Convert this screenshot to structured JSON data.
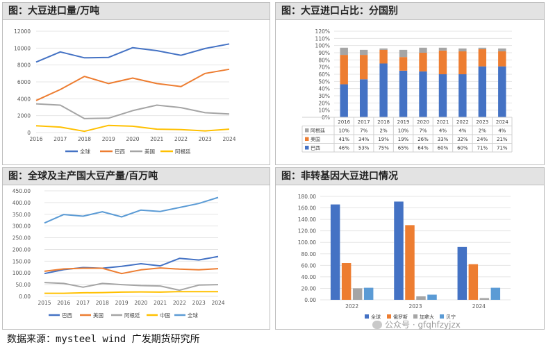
{
  "panels": {
    "p1": {
      "title": "图：大豆进口量/万吨"
    },
    "p2": {
      "title": "图：大豆进口占比：分国别"
    },
    "p3": {
      "title": "图：全球及主产国大豆产量/百万吨"
    },
    "p4": {
      "title": "图：非转基因大豆进口情况"
    }
  },
  "footer": {
    "source": "数据来源：mysteel wind 广发期货研究所",
    "watermark": "公众号 · gfqhfzyjzx"
  },
  "chart_data": [
    {
      "id": "imports",
      "type": "line",
      "title": "大豆进口量/万吨",
      "x": [
        "2016",
        "2017",
        "2018",
        "2019",
        "2020",
        "2021",
        "2022",
        "2023",
        "2024"
      ],
      "ylim": [
        0,
        12000
      ],
      "yticks": [
        0,
        2000,
        4000,
        6000,
        8000,
        10000,
        12000
      ],
      "series": [
        {
          "name": "全球",
          "color": "#4472c4",
          "values": [
            8350,
            9550,
            8850,
            8900,
            10050,
            9700,
            9150,
            9950,
            10500
          ]
        },
        {
          "name": "巴西",
          "color": "#ed7d31",
          "values": [
            3800,
            5100,
            6650,
            5800,
            6450,
            5800,
            5450,
            7000,
            7500
          ]
        },
        {
          "name": "美国",
          "color": "#a5a5a5",
          "values": [
            3400,
            3250,
            1650,
            1700,
            2600,
            3250,
            2950,
            2350,
            2200
          ]
        },
        {
          "name": "阿根廷",
          "color": "#ffc000",
          "values": [
            800,
            650,
            150,
            850,
            750,
            400,
            350,
            200,
            400
          ]
        }
      ]
    },
    {
      "id": "share",
      "type": "bar",
      "stacked": true,
      "title": "大豆进口占比：分国别",
      "categories": [
        "2016",
        "2017",
        "2018",
        "2019",
        "2020",
        "2021",
        "2022",
        "2023",
        "2024"
      ],
      "ylim": [
        0,
        120
      ],
      "yticks": [
        "0%",
        "10%",
        "20%",
        "30%",
        "40%",
        "50%",
        "60%",
        "70%",
        "80%",
        "90%",
        "100%",
        "110%",
        "120%"
      ],
      "series": [
        {
          "name": "巴西",
          "color": "#4472c4",
          "values": [
            46,
            53,
            75,
            65,
            64,
            60,
            60,
            71,
            71
          ],
          "labels": [
            "46%",
            "53%",
            "75%",
            "65%",
            "64%",
            "60%",
            "60%",
            "71%",
            "71%"
          ]
        },
        {
          "name": "美国",
          "color": "#ed7d31",
          "values": [
            41,
            34,
            19,
            19,
            26,
            33,
            32,
            24,
            21
          ],
          "labels": [
            "41%",
            "34%",
            "19%",
            "19%",
            "26%",
            "33%",
            "32%",
            "24%",
            "21%"
          ]
        },
        {
          "name": "阿根廷",
          "color": "#a5a5a5",
          "values": [
            10,
            7,
            2,
            10,
            7,
            4,
            4,
            2,
            4
          ],
          "labels": [
            "10%",
            "7%",
            "2%",
            "10%",
            "7%",
            "4%",
            "4%",
            "2%",
            "4%"
          ]
        }
      ]
    },
    {
      "id": "production",
      "type": "line",
      "title": "全球及主产国大豆产量/百万吨",
      "x": [
        "2015",
        "2016",
        "2017",
        "2018",
        "2019",
        "2020",
        "2021",
        "2022",
        "2023",
        "2024"
      ],
      "ylim": [
        0,
        450
      ],
      "yticks": [
        "0.00",
        "50.00",
        "100.00",
        "150.00",
        "200.00",
        "250.00",
        "300.00",
        "350.00",
        "400.00",
        "450.00"
      ],
      "series": [
        {
          "name": "巴西",
          "color": "#4472c4",
          "values": [
            97,
            114,
            123,
            120,
            128,
            139,
            130,
            162,
            155,
            170
          ]
        },
        {
          "name": "美国",
          "color": "#ed7d31",
          "values": [
            107,
            117,
            120,
            120,
            97,
            113,
            121,
            116,
            113,
            118
          ]
        },
        {
          "name": "阿根廷",
          "color": "#a5a5a5",
          "values": [
            59,
            55,
            39,
            55,
            50,
            46,
            44,
            26,
            48,
            50
          ]
        },
        {
          "name": "中国",
          "color": "#ffc000",
          "values": [
            13,
            13,
            15,
            16,
            18,
            19,
            18,
            20,
            20,
            20
          ]
        },
        {
          "name": "全球",
          "color": "#5b9bd5",
          "values": [
            313,
            349,
            342,
            361,
            339,
            368,
            362,
            379,
            396,
            422
          ]
        }
      ]
    },
    {
      "id": "nongmo",
      "type": "bar",
      "title": "非转基因大豆进口情况",
      "categories": [
        "2022",
        "2023",
        "2024"
      ],
      "ylim": [
        0,
        180
      ],
      "yticks": [
        "0.00",
        "20.00",
        "40.00",
        "60.00",
        "80.00",
        "100.00",
        "120.00",
        "140.00",
        "160.00",
        "180.00"
      ],
      "series": [
        {
          "name": "全球",
          "color": "#4472c4",
          "values": [
            166,
            171,
            92
          ]
        },
        {
          "name": "俄罗斯",
          "color": "#ed7d31",
          "values": [
            64,
            130,
            62
          ]
        },
        {
          "name": "加拿大",
          "color": "#a5a5a5",
          "values": [
            20,
            6,
            3
          ]
        },
        {
          "name": "贝宁",
          "color": "#5b9bd5",
          "values": [
            21,
            9,
            21
          ]
        }
      ]
    }
  ]
}
